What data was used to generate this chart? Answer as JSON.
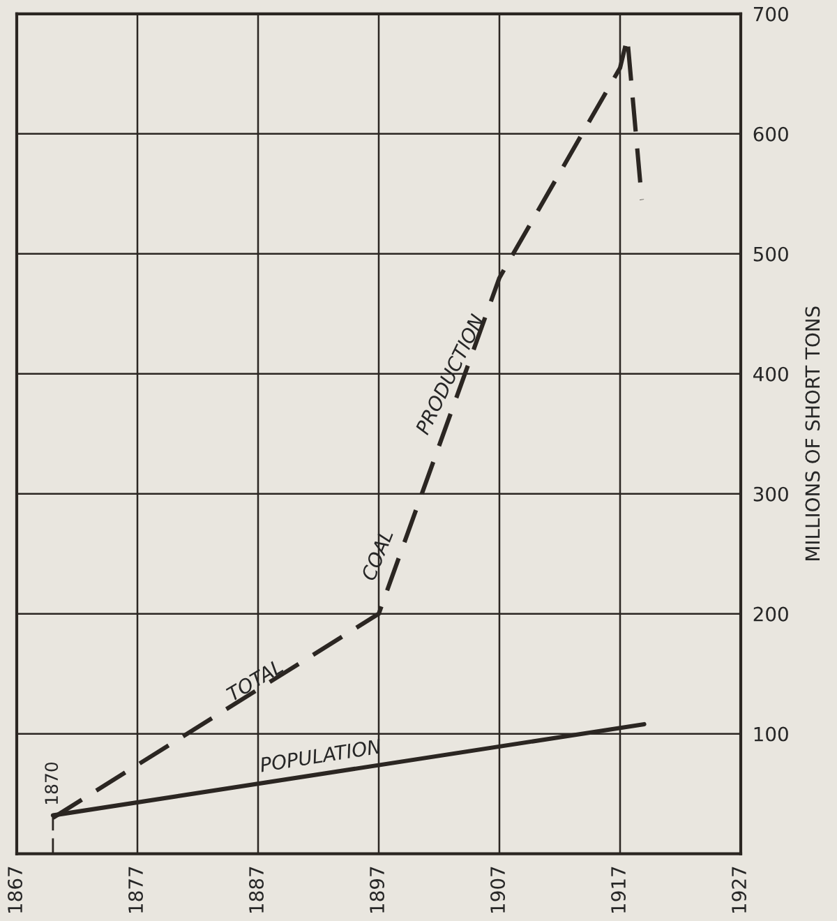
{
  "chart_data": {
    "type": "line",
    "ylabel": "MILLIONS OF SHORT TONS",
    "xlim": [
      1867,
      1927
    ],
    "xticks": [
      1867,
      1877,
      1887,
      1897,
      1907,
      1917,
      1927
    ],
    "ylim": [
      0,
      700
    ],
    "yticks": [
      {
        "value": 0,
        "label": null
      },
      100,
      200,
      300,
      400,
      500,
      600,
      700
    ],
    "grid": true,
    "marker": "none",
    "series": [
      {
        "color": "#2b2622",
        "line_style": "dashed",
        "x": [
          1870,
          1897,
          1907,
          1917,
          1917.6,
          1918.8
        ],
        "values": [
          30,
          200,
          480,
          655,
          680,
          545
        ]
      },
      {
        "color": "#2b2622",
        "line_style": "solid",
        "x": [
          1870,
          1919
        ],
        "values": [
          32,
          108
        ]
      }
    ],
    "ref_lines": [
      {
        "axis": "x",
        "value": 1870,
        "label": "1870",
        "line_style": "dashed"
      }
    ],
    "annotations": [
      "TOTAL",
      "COAL",
      "PRODUCTION",
      "POPULATION"
    ]
  }
}
